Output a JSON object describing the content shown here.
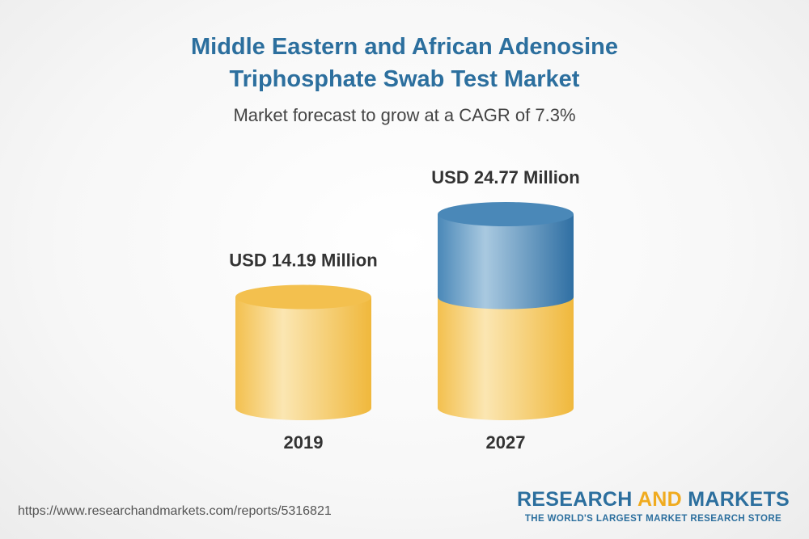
{
  "chart_data": {
    "type": "bar",
    "title_lines": [
      "Middle Eastern and African Adenosine",
      "Triphosphate Swab Test Market"
    ],
    "subtitle": "Market forecast to grow at a CAGR of 7.3%",
    "categories": [
      "2019",
      "2027"
    ],
    "values": [
      14.19,
      24.77
    ],
    "data_labels": [
      "USD 14.19 Million",
      "USD 24.77 Million"
    ],
    "unit": "USD Million",
    "base_value": 14.19,
    "colors": {
      "base": "#f3c04e",
      "base_light": "#fbe6b2",
      "growth": "#4a88b8",
      "growth_light": "#a9c9e0",
      "title": "#2c6f9e",
      "accent": "#f0ab1f"
    }
  },
  "footer": {
    "source_url": "https://www.researchandmarkets.com/reports/5316821",
    "brand_part1": "RESEARCH ",
    "brand_part2": "AND",
    "brand_part3": " MARKETS",
    "tagline": "THE WORLD'S LARGEST MARKET RESEARCH STORE"
  }
}
